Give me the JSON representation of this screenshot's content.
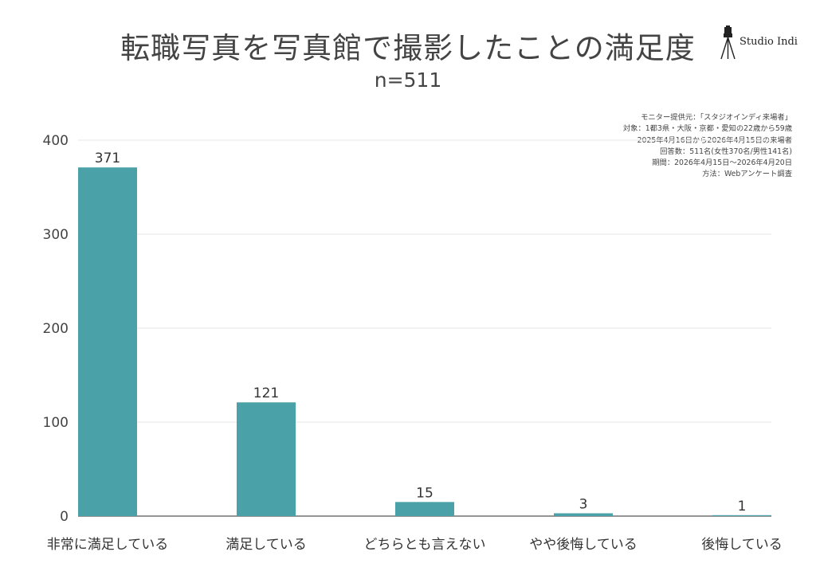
{
  "title": "転職写真を写真館で撮影したことの満足度",
  "subtitle": "n=511",
  "logo": {
    "text": "Studio Indi",
    "icon": "camera-tripod-icon"
  },
  "notes": [
    "モニター提供元：「スタジオインディ来場者」",
    "対象：1都3県・大阪・京都・愛知の22歳から59歳",
    "2025年4月16日から2026年4月15日の来場者",
    "回答数：511名(女性370名/男性141名)",
    "期間：2026年4月15日〜2026年4月20日",
    "方法：Webアンケート調査"
  ],
  "colors": {
    "bar": "#4aa2a8",
    "grid": "#ececec",
    "axis": "#555555"
  },
  "chart_data": {
    "type": "bar",
    "title": "転職写真を写真館で撮影したことの満足度",
    "subtitle": "n=511",
    "categories": [
      "非常に満足している",
      "満足している",
      "どちらとも言えない",
      "やや後悔している",
      "後悔している"
    ],
    "values": [
      371,
      121,
      15,
      3,
      1
    ],
    "ylim": [
      0,
      400
    ],
    "yticks": [
      0,
      100,
      200,
      300,
      400
    ],
    "grid": true,
    "legend": "none"
  }
}
